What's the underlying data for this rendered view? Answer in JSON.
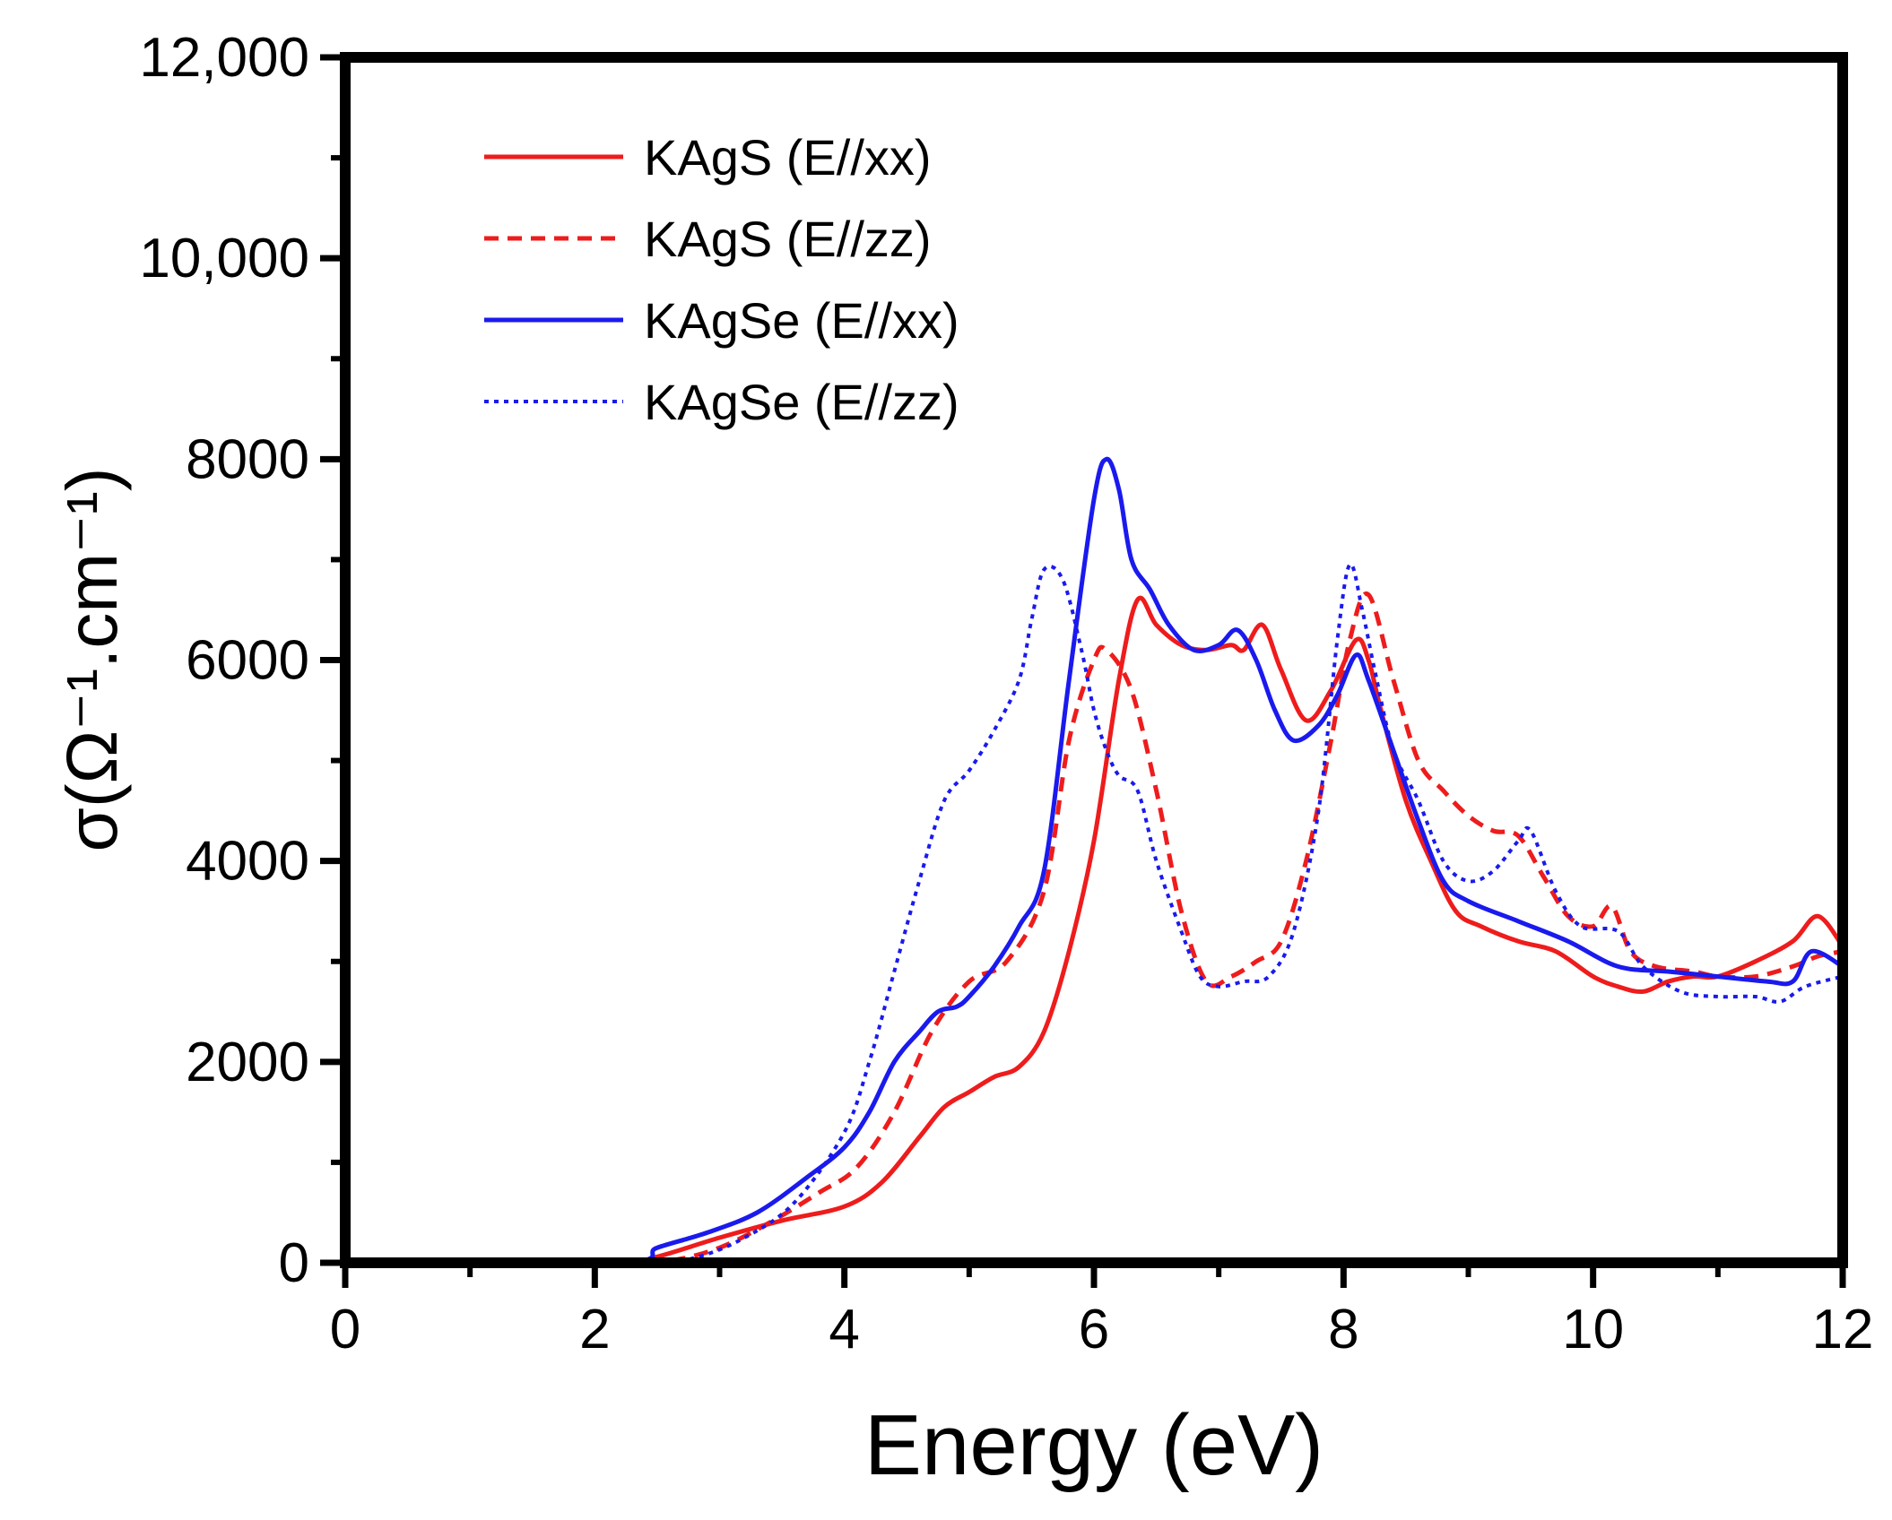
{
  "chart_data": {
    "type": "line",
    "title": "",
    "xlabel": "Energy (eV)",
    "ylabel": "σ(Ω⁻¹.cm⁻¹)",
    "xlim": [
      0,
      12
    ],
    "ylim": [
      0,
      12000
    ],
    "xticks": [
      0,
      2,
      4,
      6,
      8,
      10,
      12
    ],
    "xtick_labels": [
      "0",
      "2",
      "4",
      "6",
      "8",
      "10",
      "12"
    ],
    "yticks": [
      0,
      2000,
      4000,
      6000,
      8000,
      10000,
      12000
    ],
    "ytick_labels": [
      "0",
      "2000",
      "4000",
      "6000",
      "8000",
      "10,000",
      "12,000"
    ],
    "grid": false,
    "legend_position": "top-left",
    "series": [
      {
        "name": "KAgS  (E//xx)",
        "color": "#ee1c1c",
        "style": "solid",
        "x": [
          0,
          2.2,
          2.5,
          3.0,
          3.5,
          4.0,
          4.3,
          4.6,
          4.8,
          5.0,
          5.2,
          5.4,
          5.6,
          5.8,
          6.0,
          6.2,
          6.35,
          6.5,
          6.7,
          6.9,
          7.1,
          7.2,
          7.35,
          7.5,
          7.7,
          7.9,
          8.1,
          8.2,
          8.3,
          8.5,
          8.7,
          8.9,
          9.1,
          9.4,
          9.7,
          10.0,
          10.2,
          10.4,
          10.6,
          10.8,
          11.0,
          11.3,
          11.6,
          11.8,
          12.0
        ],
        "y": [
          0,
          0,
          60,
          250,
          420,
          560,
          800,
          1250,
          1550,
          1700,
          1850,
          1950,
          2300,
          3100,
          4200,
          5800,
          6600,
          6350,
          6150,
          6100,
          6150,
          6100,
          6350,
          5900,
          5400,
          5700,
          6200,
          6000,
          5500,
          4600,
          4000,
          3500,
          3350,
          3200,
          3100,
          2850,
          2750,
          2700,
          2800,
          2850,
          2850,
          3000,
          3200,
          3450,
          3150
        ]
      },
      {
        "name": "KAgS  (E//zz)",
        "color": "#ee1c1c",
        "style": "dashed",
        "x": [
          0,
          2.2,
          2.6,
          3.0,
          3.4,
          3.8,
          4.1,
          4.4,
          4.7,
          5.0,
          5.3,
          5.6,
          5.8,
          6.0,
          6.1,
          6.3,
          6.5,
          6.7,
          6.9,
          7.1,
          7.3,
          7.5,
          7.7,
          7.9,
          8.05,
          8.2,
          8.4,
          8.6,
          8.8,
          9.0,
          9.2,
          9.4,
          9.6,
          9.8,
          10.0,
          10.15,
          10.3,
          10.5,
          10.8,
          11.0,
          11.3,
          11.6,
          11.8,
          12.0
        ],
        "y": [
          0,
          0,
          20,
          150,
          400,
          700,
          950,
          1500,
          2300,
          2800,
          3000,
          3700,
          5200,
          6000,
          6100,
          5700,
          4700,
          3500,
          2800,
          2850,
          3000,
          3200,
          4000,
          5200,
          6200,
          6650,
          5800,
          5000,
          4700,
          4450,
          4300,
          4250,
          3850,
          3450,
          3350,
          3550,
          3100,
          2950,
          2900,
          2850,
          2850,
          2950,
          3050,
          3100
        ]
      },
      {
        "name": "KAgSe (E//xx)",
        "color": "#1a1aee",
        "style": "solid",
        "x": [
          0,
          2.2,
          2.5,
          2.9,
          3.3,
          3.7,
          4.0,
          4.2,
          4.4,
          4.6,
          4.75,
          4.9,
          5.0,
          5.2,
          5.4,
          5.6,
          5.8,
          6.0,
          6.1,
          6.2,
          6.3,
          6.45,
          6.6,
          6.8,
          7.0,
          7.15,
          7.3,
          7.45,
          7.6,
          7.8,
          7.95,
          8.1,
          8.2,
          8.4,
          8.6,
          8.8,
          9.0,
          9.4,
          9.8,
          10.2,
          10.6,
          11.0,
          11.4,
          11.6,
          11.75,
          12.0
        ],
        "y": [
          0,
          0,
          150,
          300,
          500,
          850,
          1150,
          1500,
          2000,
          2300,
          2500,
          2550,
          2650,
          2950,
          3350,
          3900,
          5800,
          7600,
          8000,
          7700,
          7000,
          6700,
          6350,
          6100,
          6150,
          6300,
          6000,
          5500,
          5200,
          5350,
          5650,
          6050,
          5800,
          5100,
          4400,
          3800,
          3600,
          3400,
          3200,
          2950,
          2900,
          2850,
          2800,
          2800,
          3100,
          2950
        ]
      },
      {
        "name": "KAgSe (E//zz)",
        "color": "#1a1aee",
        "style": "dotted",
        "x": [
          0,
          2.4,
          2.8,
          3.2,
          3.6,
          4.0,
          4.2,
          4.4,
          4.6,
          4.8,
          5.0,
          5.2,
          5.4,
          5.5,
          5.6,
          5.75,
          5.9,
          6.0,
          6.1,
          6.2,
          6.35,
          6.5,
          6.7,
          6.85,
          7.0,
          7.2,
          7.4,
          7.6,
          7.8,
          7.95,
          8.05,
          8.15,
          8.25,
          8.4,
          8.6,
          8.8,
          9.0,
          9.2,
          9.4,
          9.5,
          9.7,
          9.9,
          10.2,
          10.4,
          10.7,
          11.0,
          11.3,
          11.5,
          11.7,
          12.0
        ],
        "y": [
          0,
          0,
          50,
          250,
          600,
          1300,
          2000,
          2900,
          3800,
          4600,
          4900,
          5300,
          5800,
          6400,
          6900,
          6800,
          6100,
          5500,
          5100,
          4850,
          4700,
          4000,
          3300,
          2850,
          2750,
          2800,
          2850,
          3300,
          4500,
          6200,
          6950,
          6500,
          5900,
          5100,
          4600,
          4000,
          3800,
          3900,
          4200,
          4300,
          3700,
          3350,
          3300,
          2950,
          2700,
          2650,
          2650,
          2600,
          2750,
          2850
        ]
      }
    ]
  }
}
